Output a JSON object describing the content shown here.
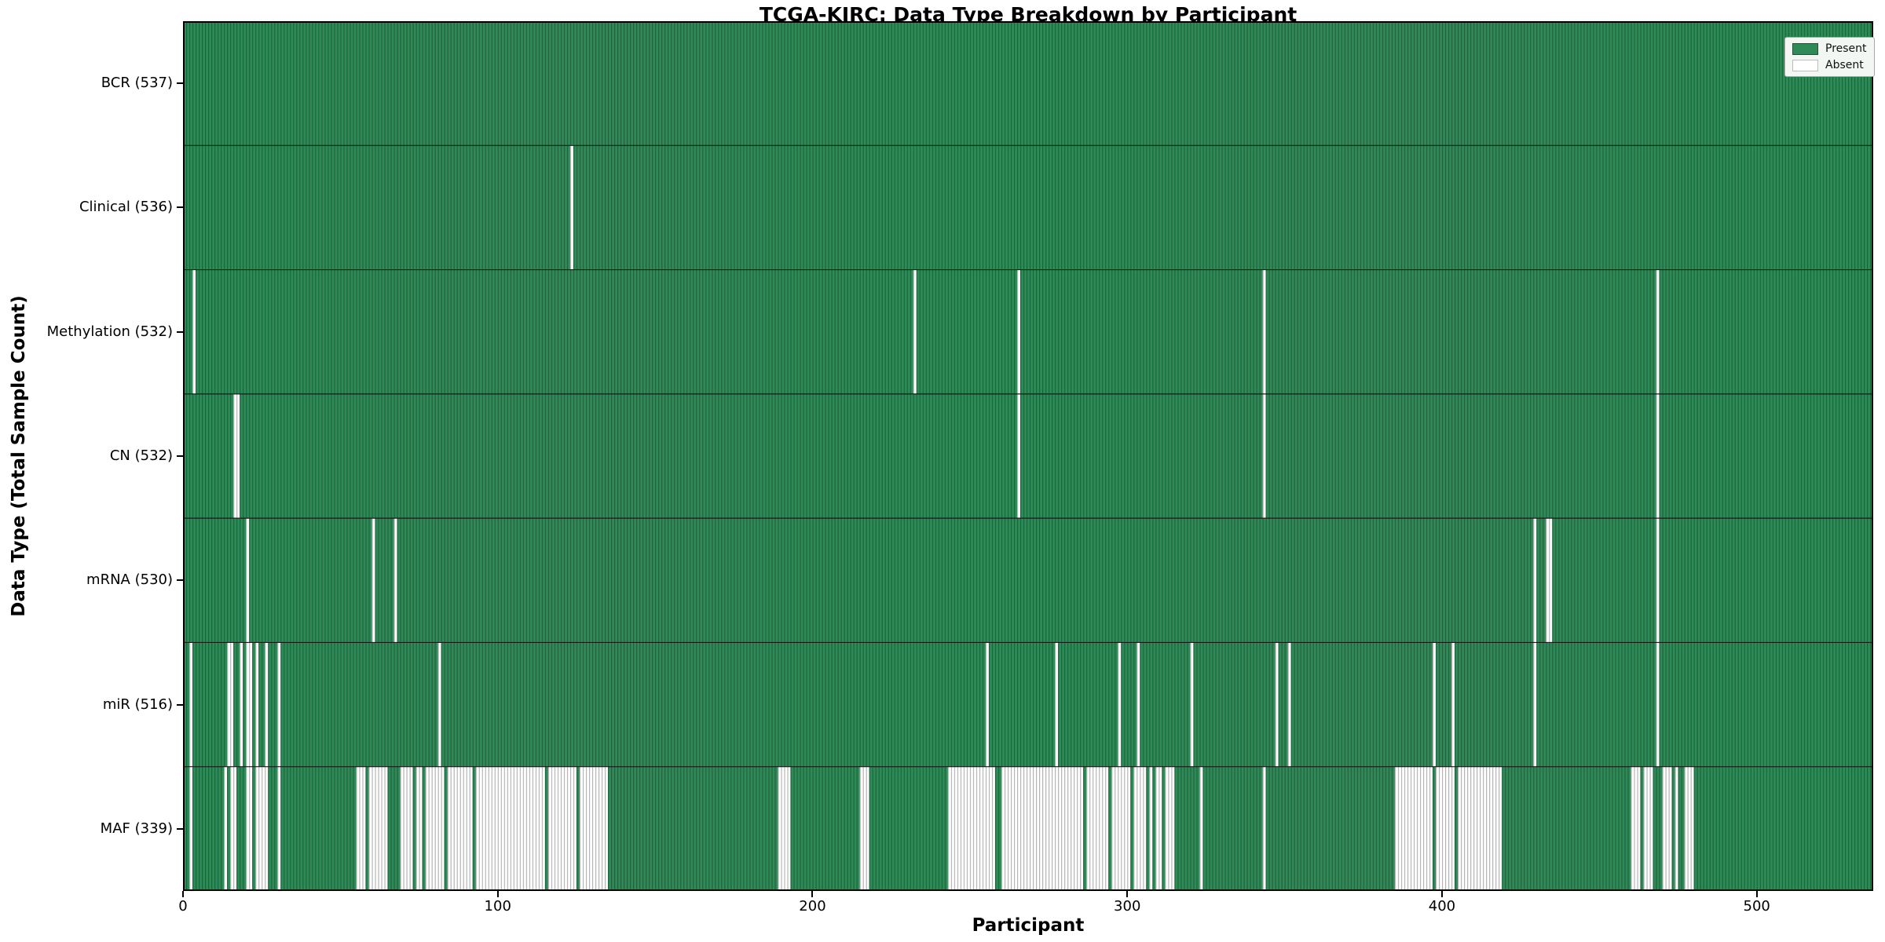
{
  "chart_data": {
    "type": "heatmap",
    "title": "TCGA-KIRC: Data Type Breakdown by Participant",
    "xlabel": "Participant",
    "ylabel": "Data Type (Total Sample Count)",
    "x_ticks": [
      0,
      100,
      200,
      300,
      400,
      500
    ],
    "x_range": [
      0,
      537
    ],
    "n_participants": 537,
    "grid": false,
    "legend": {
      "position": "upper right",
      "present_label": "Present",
      "absent_label": "Absent"
    },
    "colors": {
      "present": "#2e8b57",
      "absent": "#ffffff",
      "bar_edge_overlay": "rgba(0,0,0,0.30)",
      "row_separator": "#1a1a1a",
      "frame": "#000000"
    },
    "rows": [
      {
        "name": "BCR",
        "count": 537,
        "label": "BCR (537)",
        "absent": []
      },
      {
        "name": "Clinical",
        "count": 536,
        "label": "Clinical (536)",
        "absent": [
          123
        ]
      },
      {
        "name": "Methylation",
        "count": 532,
        "label": "Methylation (532)",
        "absent": [
          3,
          232,
          265,
          343,
          468
        ]
      },
      {
        "name": "CN",
        "count": 532,
        "label": "CN (532)",
        "absent": [
          16,
          17,
          265,
          343,
          468
        ]
      },
      {
        "name": "mRNA",
        "count": 530,
        "label": "mRNA (530)",
        "absent": [
          20,
          60,
          67,
          429,
          433,
          434,
          468
        ]
      },
      {
        "name": "miR",
        "count": 516,
        "label": "miR (516)",
        "absent": [
          2,
          14,
          15,
          18,
          20,
          21,
          23,
          26,
          30,
          81,
          255,
          277,
          297,
          303,
          320,
          347,
          351,
          397,
          403,
          429,
          468
        ]
      },
      {
        "name": "MAF",
        "count": 339,
        "label": "MAF (339)",
        "absent": [
          2,
          13,
          15,
          16,
          20,
          21,
          23,
          24,
          25,
          26,
          30,
          55,
          56,
          57,
          59,
          60,
          61,
          62,
          63,
          64,
          69,
          70,
          71,
          72,
          74,
          75,
          77,
          78,
          79,
          80,
          81,
          82,
          84,
          85,
          86,
          87,
          88,
          89,
          90,
          91,
          93,
          94,
          95,
          96,
          97,
          98,
          99,
          100,
          101,
          102,
          103,
          104,
          105,
          106,
          107,
          108,
          109,
          110,
          111,
          112,
          113,
          114,
          116,
          117,
          118,
          119,
          120,
          121,
          122,
          123,
          124,
          126,
          127,
          128,
          129,
          130,
          131,
          132,
          133,
          134,
          189,
          190,
          191,
          192,
          215,
          216,
          217,
          243,
          244,
          245,
          246,
          247,
          248,
          249,
          250,
          251,
          252,
          253,
          254,
          255,
          256,
          257,
          260,
          261,
          262,
          263,
          264,
          265,
          266,
          267,
          268,
          269,
          270,
          271,
          272,
          273,
          274,
          275,
          276,
          277,
          278,
          279,
          280,
          281,
          282,
          283,
          284,
          285,
          287,
          288,
          289,
          290,
          291,
          292,
          293,
          295,
          296,
          297,
          298,
          299,
          300,
          302,
          303,
          304,
          305,
          307,
          309,
          310,
          312,
          313,
          314,
          323,
          343,
          385,
          386,
          387,
          388,
          389,
          390,
          391,
          392,
          393,
          394,
          395,
          396,
          398,
          399,
          400,
          401,
          402,
          403,
          405,
          406,
          407,
          408,
          409,
          410,
          411,
          412,
          413,
          414,
          415,
          416,
          417,
          418,
          460,
          461,
          462,
          464,
          465,
          466,
          470,
          471,
          472,
          474,
          477,
          478,
          479
        ]
      }
    ]
  }
}
